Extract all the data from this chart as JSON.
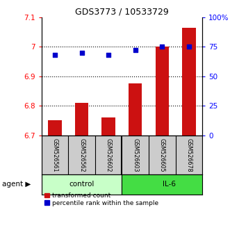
{
  "title": "GDS3773 / 10533729",
  "samples": [
    "GSM526561",
    "GSM526562",
    "GSM526602",
    "GSM526603",
    "GSM526605",
    "GSM526678"
  ],
  "red_values": [
    6.75,
    6.81,
    6.76,
    6.875,
    7.0,
    7.065
  ],
  "blue_values": [
    0.68,
    0.7,
    0.68,
    0.72,
    0.75,
    0.75
  ],
  "ylim_left": [
    6.7,
    7.1
  ],
  "ylim_right": [
    0.0,
    1.0
  ],
  "yticks_left": [
    6.7,
    6.8,
    6.9,
    7.0,
    7.1
  ],
  "yticks_right": [
    0.0,
    0.25,
    0.5,
    0.75,
    1.0
  ],
  "ytick_labels_right": [
    "0",
    "25",
    "50",
    "75",
    "100%"
  ],
  "ytick_labels_left": [
    "6.7",
    "6.8",
    "6.9",
    "7",
    "7.1"
  ],
  "hlines": [
    7.0,
    6.9,
    6.8
  ],
  "control_color": "#c8ffc8",
  "il6_color": "#44dd44",
  "bar_color": "#cc1111",
  "dot_color": "#0000cc",
  "legend_items": [
    "transformed count",
    "percentile rank within the sample"
  ],
  "bar_width": 0.5,
  "fig_width": 3.31,
  "fig_height": 3.54,
  "dpi": 100
}
